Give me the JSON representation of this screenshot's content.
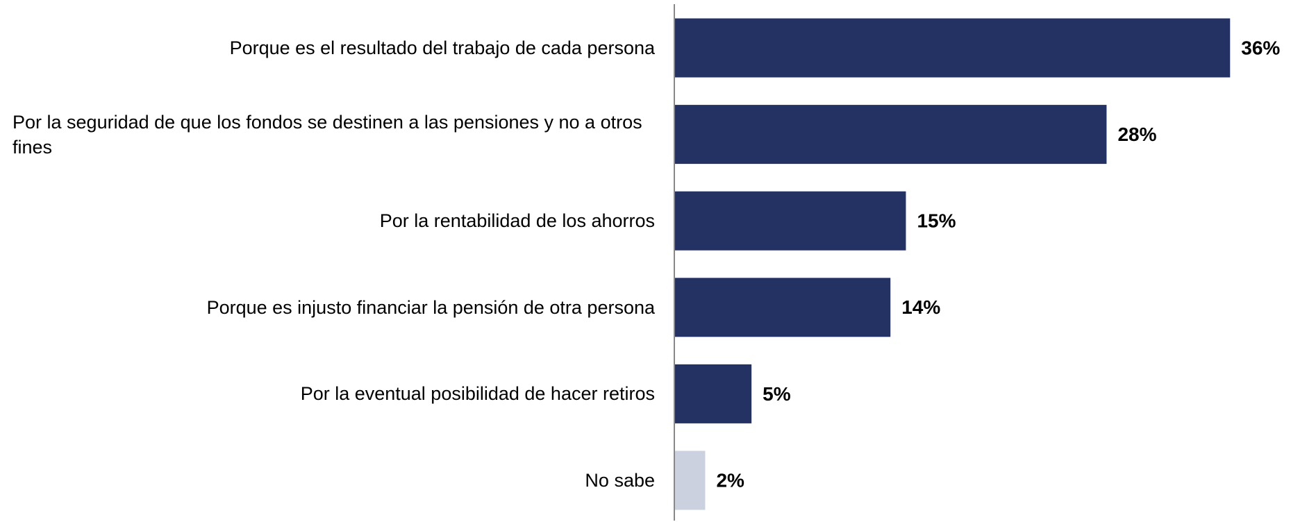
{
  "chart_data": {
    "type": "bar",
    "orientation": "horizontal",
    "categories": [
      "Porque es el resultado del trabajo de cada persona",
      "Por la seguridad de que los fondos se destinen a las pensiones y no a otros fines",
      "Por la rentabilidad de los ahorros",
      "Porque es injusto financiar la pensión de otra persona",
      "Por la eventual posibilidad de hacer retiros",
      "No sabe"
    ],
    "values": [
      36,
      28,
      15,
      14,
      5,
      2
    ],
    "value_labels": [
      "36%",
      "28%",
      "15%",
      "14%",
      "5%",
      "2%"
    ],
    "colors": [
      "#233163",
      "#233163",
      "#233163",
      "#233163",
      "#233163",
      "#cbd1de"
    ]
  }
}
